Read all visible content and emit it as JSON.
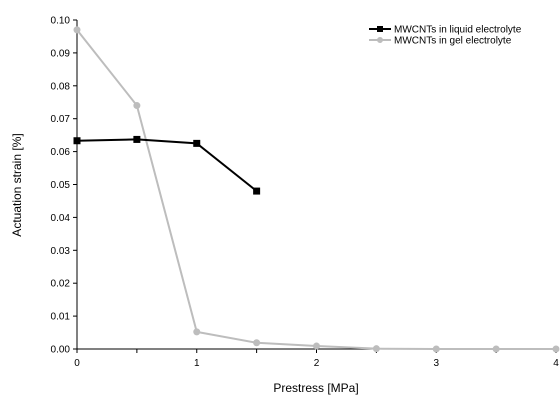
{
  "chart_data": {
    "type": "line",
    "xlabel": "Prestress [MPa]",
    "ylabel": "Actuation strain [%]",
    "xlim": [
      0,
      4
    ],
    "ylim": [
      0,
      0.1
    ],
    "xticks": [
      0,
      0.5,
      1,
      1.5,
      2,
      2.5,
      3,
      3.5,
      4
    ],
    "xtick_labels": [
      "0",
      "",
      "1",
      "",
      "2",
      "",
      "3",
      "",
      "4"
    ],
    "yticks": [
      0,
      0.01,
      0.02,
      0.03,
      0.04,
      0.05,
      0.06,
      0.07,
      0.08,
      0.09,
      0.1
    ],
    "ytick_labels": [
      "0.00",
      "0.01",
      "0.02",
      "0.03",
      "0.04",
      "0.05",
      "0.06",
      "0.07",
      "0.08",
      "0.09",
      "0.10"
    ],
    "grid": false,
    "legend_position": "top-right",
    "series": [
      {
        "name": "MWCNTs in liquid electrolyte",
        "color": "#000000",
        "marker": "square",
        "x": [
          0,
          0.5,
          1,
          1.5
        ],
        "y": [
          0.0633,
          0.0637,
          0.0625,
          0.048
        ]
      },
      {
        "name": "MWCNTs in gel electrolyte",
        "color": "#bdbdbd",
        "marker": "circle",
        "x": [
          0,
          0.5,
          1,
          1.5,
          2,
          2.5,
          3,
          3.5,
          4
        ],
        "y": [
          0.097,
          0.074,
          0.0052,
          0.0019,
          0.0009,
          0.0001,
          0.0,
          0.0,
          0.0
        ]
      }
    ]
  }
}
